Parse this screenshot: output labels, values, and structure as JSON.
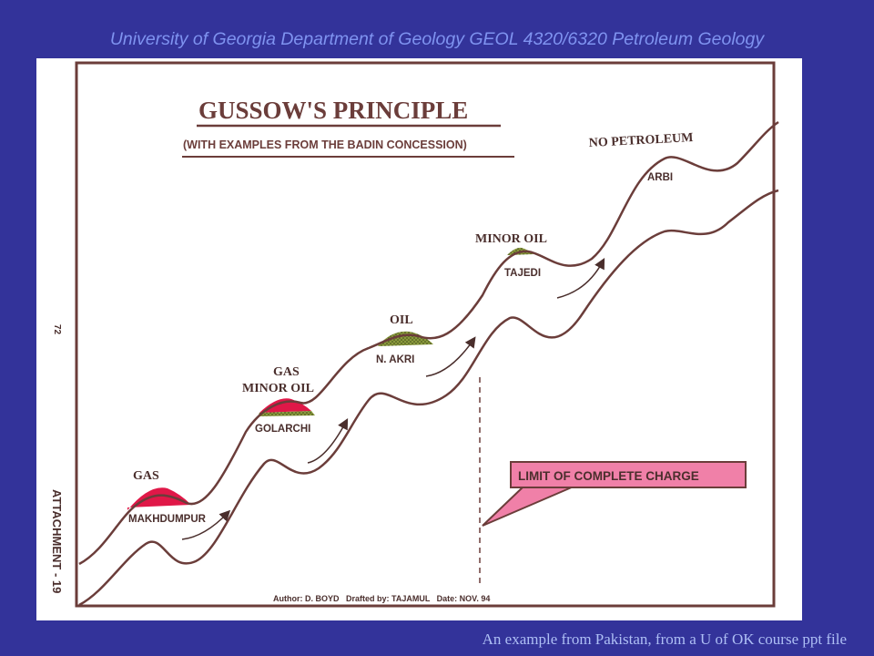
{
  "header": {
    "text": "University of Georgia Department of Geology GEOL 4320/6320 Petroleum Geology"
  },
  "footer": {
    "text": "An example from Pakistan, from a U of OK course ppt file"
  },
  "figure": {
    "title": "GUSSOW'S PRINCIPLE",
    "subtitle": "(WITH EXAMPLES FROM THE BADIN CONCESSION)",
    "page_number": "72",
    "attachment_label": "ATTACHMENT - 19",
    "credits": "Author: D. BOYD   Drafted by: TAJAMUL   Date: NOV. 94",
    "limit_label": "LIMIT OF COMPLETE CHARGE",
    "colors": {
      "gas": "#e01848",
      "oil": "#8a9a3c",
      "line": "#6b3d3a",
      "callout": "#f080a8"
    },
    "traps": [
      {
        "name": "MAKHDUMPUR",
        "content": "GAS",
        "content_line2": ""
      },
      {
        "name": "GOLARCHI",
        "content": "GAS",
        "content_line2": "MINOR OIL"
      },
      {
        "name": "N. AKRI",
        "content": "OIL",
        "content_line2": ""
      },
      {
        "name": "TAJEDI",
        "content": "MINOR OIL",
        "content_line2": ""
      },
      {
        "name": "ARBI",
        "content": "NO PETROLEUM",
        "content_line2": ""
      }
    ]
  }
}
